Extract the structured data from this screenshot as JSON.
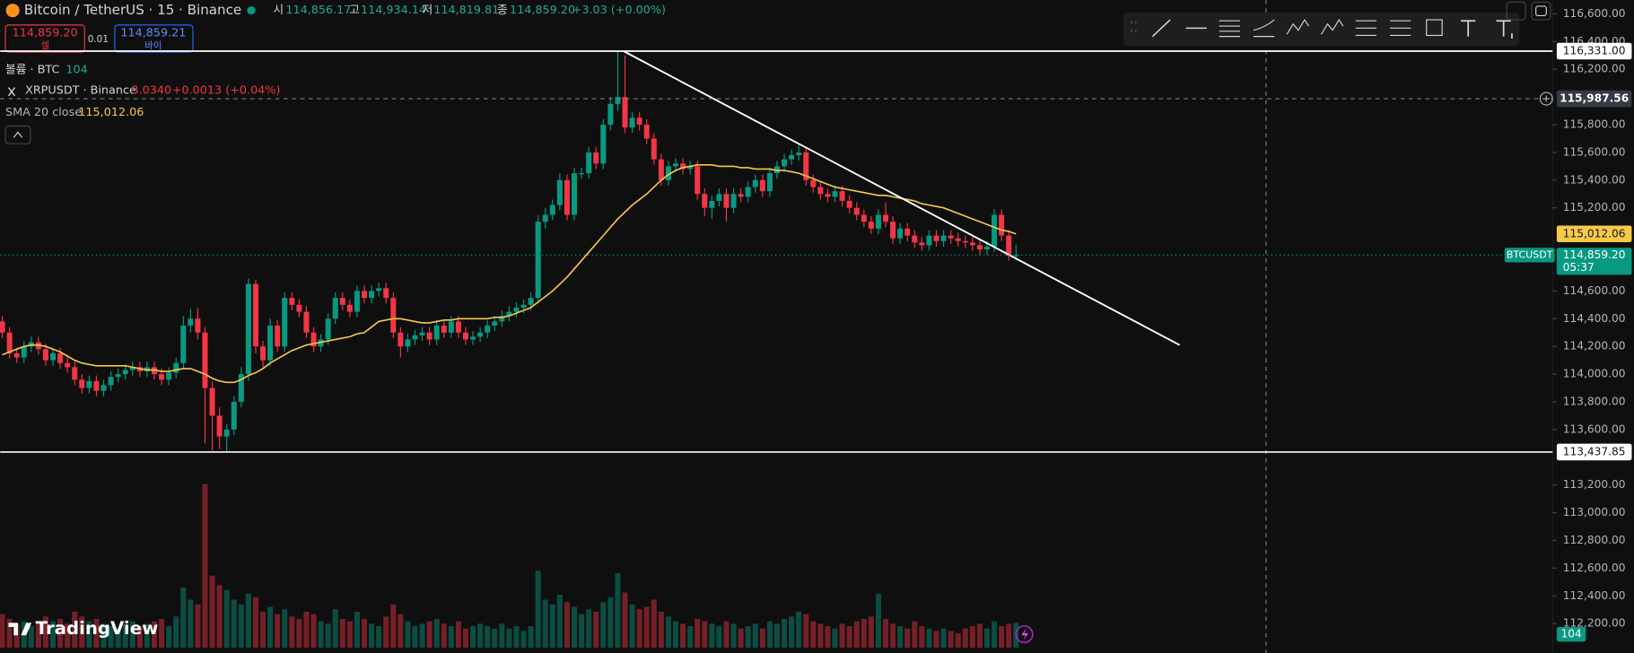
{
  "ui": {
    "header": {
      "title": "Bitcoin / TetherUS · 15 · Binance",
      "o_key": "시",
      "o": "114,856.17",
      "h_key": "고",
      "h": "114,934.14",
      "l_key": "저",
      "l": "114,819.81",
      "c_key": "종",
      "c": "114,859.20",
      "change": "+3.03 (+0.00%)"
    },
    "sell": {
      "price": "114,859.20",
      "label": "셀"
    },
    "spread": "0.01",
    "buy": {
      "price": "114,859.21",
      "label": "바이"
    },
    "compare": {
      "name": "XRPUSDT · Binance",
      "value": "3.0340",
      "change": "+0.0013 (+0.04%)"
    },
    "logo": "TradingView"
  },
  "chart_data": {
    "type": "candlestick",
    "title": "Bitcoin / TetherUS · 15 · Binance",
    "ylim": [
      112040,
      116700
    ],
    "yticks": [
      {
        "value": 116600,
        "label": "116,600.00"
      },
      {
        "value": 116400,
        "label": "116,400.00"
      },
      {
        "value": 116200,
        "label": "116,200.00"
      },
      {
        "value": 115800,
        "label": "115,800.00"
      },
      {
        "value": 115600,
        "label": "115,600.00"
      },
      {
        "value": 115400,
        "label": "115,400.00"
      },
      {
        "value": 115200,
        "label": "115,200.00"
      },
      {
        "value": 114600,
        "label": "114,600.00"
      },
      {
        "value": 114400,
        "label": "114,400.00"
      },
      {
        "value": 114200,
        "label": "114,200.00"
      },
      {
        "value": 114000,
        "label": "114,000.00"
      },
      {
        "value": 113800,
        "label": "113,800.00"
      },
      {
        "value": 113600,
        "label": "113,600.00"
      },
      {
        "value": 113200,
        "label": "113,200.00"
      },
      {
        "value": 113000,
        "label": "113,000.00"
      },
      {
        "value": 112800,
        "label": "112,800.00"
      },
      {
        "value": 112600,
        "label": "112,600.00"
      },
      {
        "value": 112400,
        "label": "112,400.00"
      },
      {
        "value": 112200,
        "label": "112,200.00"
      }
    ],
    "series": [
      {
        "name": "BTCUSDT",
        "up_color": "#089981",
        "down_color": "#f23645",
        "open": [
          114380,
          114300,
          114150,
          114120,
          114200,
          114230,
          114180,
          114100,
          114150,
          114080,
          114050,
          113960,
          113900,
          113950,
          113880,
          113920,
          113980,
          114000,
          114030,
          114050,
          114020,
          114050,
          114000,
          113960,
          114010,
          114080,
          114350,
          114400,
          114300,
          113900,
          113700,
          113550,
          113600,
          113800,
          114000,
          114650,
          114200,
          114100,
          114350,
          114200,
          114550,
          114500,
          114450,
          114300,
          114200,
          114250,
          114400,
          114550,
          114500,
          114450,
          114600,
          114550,
          114600,
          114620,
          114550,
          114300,
          114200,
          114250,
          114280,
          114300,
          114250,
          114350,
          114300,
          114380,
          114300,
          114250,
          114270,
          114300,
          114350,
          114380,
          114420,
          114450,
          114480,
          114500,
          114550,
          115100,
          115150,
          115220,
          115400,
          115150,
          115450,
          115450,
          115600,
          115520,
          115800,
          115950,
          116000,
          115780,
          115850,
          115800,
          115700,
          115550,
          115400,
          115500,
          115520,
          115480,
          115500,
          115300,
          115200,
          115250,
          115300,
          115200,
          115300,
          115280,
          115350,
          115400,
          115320,
          115450,
          115500,
          115550,
          115580,
          115600,
          115400,
          115350,
          115300,
          115280,
          115320,
          115250,
          115200,
          115150,
          115100,
          115050,
          115150,
          115100,
          114980,
          115050,
          115000,
          114950,
          114930,
          115000,
          114960,
          115000,
          114980,
          114960,
          114950,
          114930,
          114900,
          114920,
          115150,
          115000,
          114856.17
        ],
        "high": [
          114420,
          114340,
          114190,
          114240,
          114270,
          114270,
          114220,
          114190,
          114190,
          114120,
          114090,
          114000,
          113990,
          113990,
          113960,
          114020,
          114040,
          114070,
          114090,
          114090,
          114090,
          114090,
          114040,
          114050,
          114120,
          114420,
          114470,
          114480,
          114340,
          113950,
          113760,
          113640,
          113840,
          114050,
          114690,
          114680,
          114240,
          114400,
          114390,
          114590,
          114590,
          114540,
          114490,
          114340,
          114290,
          114440,
          114590,
          114590,
          114540,
          114640,
          114640,
          114640,
          114660,
          114660,
          114590,
          114340,
          114290,
          114320,
          114340,
          114340,
          114390,
          114390,
          114420,
          114420,
          114340,
          114310,
          114340,
          114390,
          114420,
          114460,
          114490,
          114520,
          114540,
          114590,
          115150,
          115200,
          115260,
          115450,
          115440,
          115490,
          115490,
          115640,
          115640,
          115840,
          116000,
          116331,
          116300,
          115890,
          115890,
          115840,
          115740,
          115590,
          115540,
          115560,
          115560,
          115540,
          115540,
          115340,
          115290,
          115340,
          115340,
          115340,
          115340,
          115390,
          115440,
          115440,
          115490,
          115540,
          115590,
          115620,
          115660,
          115640,
          115440,
          115390,
          115340,
          115360,
          115360,
          115290,
          115240,
          115190,
          115140,
          115190,
          115240,
          115140,
          115090,
          115090,
          115040,
          114990,
          115040,
          115040,
          115040,
          115040,
          115020,
          115000,
          114990,
          114970,
          114960,
          115190,
          115190,
          115040,
          114934.14
        ],
        "low": [
          114260,
          114110,
          114080,
          114080,
          114160,
          114140,
          114060,
          114060,
          114040,
          114010,
          113920,
          113860,
          113860,
          113840,
          113840,
          113880,
          113940,
          113960,
          113990,
          113980,
          113980,
          113960,
          113920,
          113920,
          113970,
          114040,
          114300,
          114250,
          113500,
          113450,
          113460,
          113440,
          113560,
          113760,
          113950,
          114150,
          114050,
          114060,
          114160,
          114160,
          114460,
          114410,
          114260,
          114160,
          114160,
          114210,
          114360,
          114460,
          114410,
          114410,
          114510,
          114510,
          114560,
          114510,
          114260,
          114120,
          114160,
          114210,
          114240,
          114210,
          114210,
          114260,
          114260,
          114260,
          114210,
          114210,
          114230,
          114260,
          114310,
          114340,
          114380,
          114410,
          114440,
          114460,
          114510,
          115050,
          115110,
          115180,
          115110,
          115110,
          115410,
          115410,
          115480,
          115480,
          115760,
          115900,
          115740,
          115740,
          115760,
          115660,
          115510,
          115360,
          115360,
          115460,
          115440,
          115440,
          115260,
          115140,
          115120,
          115210,
          115100,
          115160,
          115240,
          115240,
          115310,
          115280,
          115280,
          115410,
          115460,
          115510,
          115540,
          115360,
          115310,
          115260,
          115240,
          115240,
          115210,
          115160,
          115110,
          115060,
          115010,
          115010,
          115060,
          114940,
          114940,
          114960,
          114910,
          114890,
          114890,
          114920,
          114920,
          114940,
          114920,
          114910,
          114890,
          114860,
          114860,
          114880,
          114960,
          114820,
          114819.81
        ],
        "close": [
          114300,
          114150,
          114120,
          114200,
          114230,
          114180,
          114100,
          114150,
          114080,
          114050,
          113960,
          113900,
          113950,
          113880,
          113920,
          113980,
          114000,
          114030,
          114050,
          114020,
          114050,
          114000,
          113960,
          114010,
          114080,
          114350,
          114400,
          114300,
          113900,
          113700,
          113550,
          113600,
          113800,
          114000,
          114650,
          114200,
          114100,
          114350,
          114200,
          114550,
          114500,
          114450,
          114300,
          114200,
          114250,
          114400,
          114550,
          114500,
          114450,
          114600,
          114550,
          114600,
          114620,
          114550,
          114300,
          114200,
          114250,
          114280,
          114300,
          114250,
          114350,
          114300,
          114380,
          114300,
          114250,
          114270,
          114300,
          114350,
          114380,
          114420,
          114450,
          114480,
          114500,
          114550,
          115100,
          115150,
          115220,
          115400,
          115150,
          115450,
          115450,
          115600,
          115520,
          115800,
          115950,
          116000,
          115780,
          115850,
          115800,
          115700,
          115550,
          115400,
          115500,
          115520,
          115480,
          115500,
          115300,
          115200,
          115250,
          115300,
          115200,
          115300,
          115280,
          115350,
          115400,
          115320,
          115450,
          115500,
          115550,
          115580,
          115600,
          115400,
          115350,
          115300,
          115280,
          115320,
          115250,
          115200,
          115150,
          115100,
          115050,
          115150,
          115100,
          114980,
          115050,
          115000,
          114950,
          114930,
          115000,
          114960,
          115000,
          114980,
          114960,
          114950,
          114930,
          114900,
          114920,
          115150,
          115000,
          114856.17,
          114859.2
        ]
      }
    ],
    "volume": {
      "name": "볼륨 · BTC",
      "ylim": [
        0,
        900
      ],
      "values": [
        140,
        120,
        100,
        110,
        90,
        100,
        130,
        110,
        120,
        100,
        150,
        130,
        110,
        120,
        100,
        90,
        80,
        100,
        110,
        90,
        100,
        110,
        120,
        90,
        130,
        250,
        200,
        180,
        680,
        300,
        260,
        240,
        200,
        180,
        225,
        210,
        150,
        170,
        140,
        160,
        130,
        120,
        150,
        140,
        110,
        100,
        160,
        120,
        110,
        150,
        120,
        100,
        90,
        130,
        180,
        140,
        110,
        90,
        100,
        110,
        120,
        100,
        90,
        110,
        80,
        90,
        100,
        90,
        80,
        100,
        80,
        90,
        70,
        90,
        320,
        200,
        180,
        220,
        190,
        170,
        140,
        160,
        150,
        190,
        210,
        310,
        230,
        180,
        160,
        170,
        200,
        150,
        130,
        110,
        100,
        90,
        120,
        110,
        100,
        90,
        110,
        100,
        80,
        90,
        100,
        80,
        110,
        100,
        120,
        130,
        150,
        140,
        110,
        100,
        90,
        80,
        100,
        90,
        110,
        120,
        130,
        225,
        120,
        100,
        90,
        80,
        110,
        90,
        80,
        70,
        80,
        70,
        60,
        80,
        90,
        100,
        80,
        110,
        90,
        100,
        104
      ]
    },
    "sma": {
      "name": "SMA 20 close",
      "color": "#f7c948",
      "last_label": "115,012.06",
      "values": [
        114140,
        114160,
        114180,
        114200,
        114210,
        114210,
        114200,
        114180,
        114160,
        114130,
        114100,
        114080,
        114070,
        114060,
        114060,
        114060,
        114060,
        114060,
        114050,
        114040,
        114030,
        114030,
        114020,
        114020,
        114030,
        114040,
        114040,
        114020,
        114000,
        113970,
        113950,
        113940,
        113940,
        113960,
        113990,
        114010,
        114040,
        114080,
        114110,
        114140,
        114170,
        114190,
        114210,
        114220,
        114230,
        114240,
        114250,
        114260,
        114270,
        114290,
        114300,
        114340,
        114380,
        114390,
        114400,
        114400,
        114390,
        114380,
        114370,
        114370,
        114380,
        114390,
        114390,
        114400,
        114400,
        114400,
        114400,
        114400,
        114410,
        114410,
        114420,
        114440,
        114460,
        114480,
        114520,
        114560,
        114600,
        114650,
        114700,
        114760,
        114820,
        114880,
        114940,
        115000,
        115060,
        115120,
        115170,
        115220,
        115260,
        115300,
        115350,
        115400,
        115440,
        115470,
        115490,
        115500,
        115510,
        115510,
        115510,
        115500,
        115500,
        115500,
        115490,
        115490,
        115480,
        115480,
        115480,
        115470,
        115470,
        115460,
        115450,
        115430,
        115410,
        115390,
        115370,
        115350,
        115340,
        115330,
        115320,
        115310,
        115300,
        115290,
        115290,
        115280,
        115270,
        115260,
        115250,
        115230,
        115220,
        115210,
        115200,
        115180,
        115160,
        115140,
        115120,
        115100,
        115080,
        115060,
        115040,
        115030,
        115012.06
      ]
    },
    "price_lines": [
      {
        "value": 116331,
        "label": "116,331.00"
      },
      {
        "value": 113437.85,
        "label": "113,437.85"
      }
    ],
    "crosshair": {
      "value": 115987.56,
      "label": "115,987.56"
    },
    "trendline": {
      "x": [
        85.8,
        162.6
      ],
      "y": [
        116331,
        114210
      ]
    },
    "last_price": {
      "value": 114859.2,
      "label": "114,859.20",
      "countdown": "05:37"
    }
  }
}
